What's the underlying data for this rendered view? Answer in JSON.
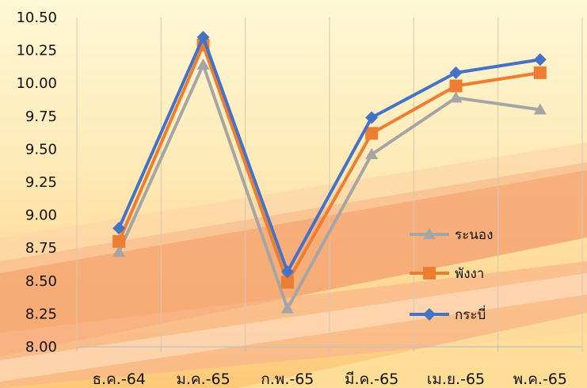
{
  "chart_data": {
    "type": "line",
    "categories": [
      "ธ.ค.-64",
      "ม.ค.-65",
      "ก.พ.-65",
      "มี.ค.-65",
      "เม.ย.-65",
      "พ.ค.-65"
    ],
    "ylim": [
      8.0,
      10.5
    ],
    "yticks": [
      "8.00",
      "8.25",
      "8.50",
      "8.75",
      "9.00",
      "9.25",
      "9.50",
      "9.75",
      "10.00",
      "10.25",
      "10.50"
    ],
    "grid": "vertical",
    "legend_position": "right",
    "series": [
      {
        "name": "ระนอง",
        "marker": "triangle",
        "color": "#A5A5A5",
        "values": [
          8.72,
          10.14,
          8.29,
          9.46,
          9.89,
          9.8
        ]
      },
      {
        "name": "พังงา",
        "marker": "square",
        "color": "#ED7D31",
        "values": [
          8.8,
          10.29,
          8.49,
          9.62,
          9.98,
          10.08
        ]
      },
      {
        "name": "กระบี่",
        "marker": "diamond",
        "color": "#4472C4",
        "values": [
          8.9,
          10.35,
          8.57,
          9.74,
          10.08,
          10.18
        ]
      }
    ],
    "title": "",
    "xlabel": "",
    "ylabel": ""
  }
}
